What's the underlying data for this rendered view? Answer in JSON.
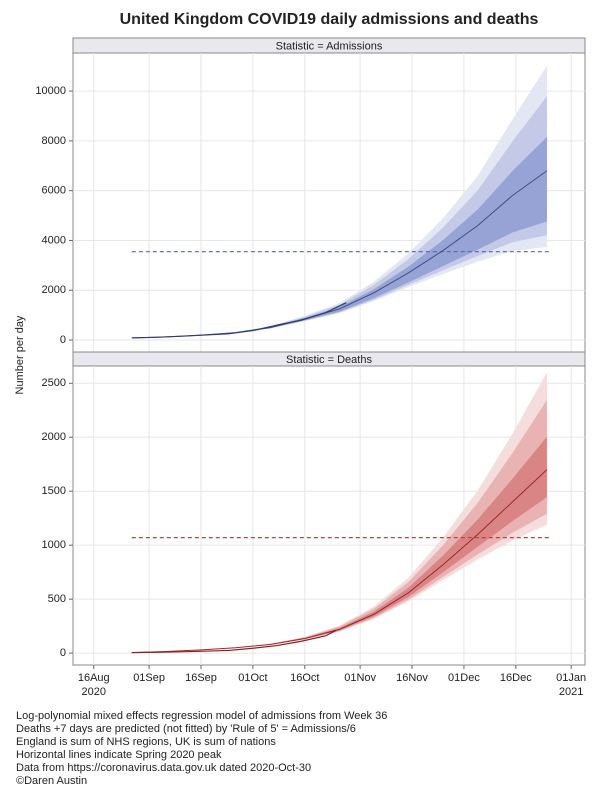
{
  "title": "United Kingdom COVID19 daily admissions and deaths",
  "ylabel": "Number per day",
  "notes": [
    "Log-polynomial mixed effects regression model of admissions from Week 36",
    "Deaths +7 days are predicted (not fitted) by 'Rule of 5' = Admissions/6",
    "England is sum of NHS regions, UK is sum of nations",
    "Horizontal lines indicate Spring 2020 peak",
    "Data from https://coronavirus.data.gov.uk dated 2020-Oct-30",
    "©Daren Austin"
  ],
  "chart_data": [
    {
      "type": "line",
      "panel": "Statistic = Admissions",
      "ylim": [
        -480,
        11530
      ],
      "yticks": [
        0,
        2000,
        4000,
        6000,
        8000,
        10000
      ],
      "x": [
        "2020-08-27",
        "2020-09-06",
        "2020-09-16",
        "2020-09-26",
        "2020-10-06",
        "2020-10-16",
        "2020-10-26",
        "2020-11-05",
        "2020-11-15",
        "2020-11-25",
        "2020-12-05",
        "2020-12-15",
        "2020-12-25"
      ],
      "fit": {
        "color": "#3d4f8a",
        "values": [
          80,
          130,
          200,
          300,
          500,
          850,
          1250,
          1900,
          2700,
          3600,
          4600,
          5800,
          6800
        ]
      },
      "bands": [
        {
          "color": "#e3e6f3",
          "lower": [
            80,
            128,
            193,
            284,
            462,
            762,
            1081,
            1575,
            2129,
            2660,
            3151,
            3582,
            3740
          ],
          "upper": [
            80,
            133,
            210,
            322,
            553,
            971,
            1483,
            2348,
            3487,
            4895,
            6596,
            8857,
            11016
          ]
        },
        {
          "color": "#c3c9e7",
          "lower": [
            80,
            128,
            194,
            286,
            468,
            776,
            1108,
            1626,
            2218,
            2807,
            3376,
            3927,
            4216
          ],
          "upper": [
            80,
            132,
            207,
            316,
            537,
            936,
            1415,
            2218,
            3258,
            4519,
            6017,
            7969,
            9792
          ]
        },
        {
          "color": "#97a3d5",
          "lower": [
            80,
            128,
            195,
            289,
            475,
            791,
            1138,
            1683,
            2319,
            2974,
            3634,
            4321,
            4760
          ],
          "upper": [
            80,
            131,
            203,
            307,
            517,
            889,
            1325,
            2044,
            2954,
            4018,
            5244,
            6786,
            8160
          ]
        }
      ],
      "observed": {
        "color": "#2e3b75",
        "x": [
          "2020-08-27",
          "2020-09-03",
          "2020-09-10",
          "2020-09-17",
          "2020-09-24",
          "2020-10-01",
          "2020-10-08",
          "2020-10-15",
          "2020-10-22",
          "2020-10-28"
        ],
        "values": [
          90,
          110,
          150,
          200,
          250,
          380,
          600,
          800,
          1100,
          1500
        ]
      },
      "reference": {
        "color": "#5a66a8",
        "value": 3550,
        "x": [
          "2020-08-27",
          "2020-12-26"
        ]
      }
    },
    {
      "type": "line",
      "panel": "Statistic = Deaths",
      "ylim": [
        -110,
        2660
      ],
      "yticks": [
        0,
        500,
        1000,
        1500,
        2000,
        2500
      ],
      "xlim": [
        "2020-08-10",
        "2021-01-05"
      ],
      "xticks": [
        {
          "value": "2020-08-16",
          "label": "16Aug",
          "year": "2020"
        },
        {
          "value": "2020-09-01",
          "label": "01Sep"
        },
        {
          "value": "2020-09-16",
          "label": "16Sep"
        },
        {
          "value": "2020-10-01",
          "label": "01Oct"
        },
        {
          "value": "2020-10-16",
          "label": "16Oct"
        },
        {
          "value": "2020-11-01",
          "label": "01Nov"
        },
        {
          "value": "2020-11-16",
          "label": "16Nov"
        },
        {
          "value": "2020-12-01",
          "label": "01Dec"
        },
        {
          "value": "2020-12-16",
          "label": "16Dec"
        },
        {
          "value": "2021-01-01",
          "label": "01Jan",
          "year": "2021"
        }
      ],
      "x": [
        "2020-08-27",
        "2020-09-06",
        "2020-09-16",
        "2020-09-26",
        "2020-10-06",
        "2020-10-16",
        "2020-10-26",
        "2020-11-05",
        "2020-11-15",
        "2020-11-25",
        "2020-12-05",
        "2020-12-15",
        "2020-12-25"
      ],
      "fit": {
        "color": "#a02828",
        "values": [
          5,
          15,
          30,
          50,
          80,
          135,
          220,
          360,
          560,
          820,
          1100,
          1400,
          1700
        ]
      },
      "bands": [
        {
          "color": "#f5dddd",
          "lower": [
            5,
            15,
            29,
            48,
            76,
            126,
            200,
            319,
            481,
            677,
            869,
            1043,
            1190
          ],
          "upper": [
            5,
            15,
            31,
            53,
            87,
            151,
            255,
            433,
            700,
            1072,
            1508,
            2031,
            2601
          ]
        },
        {
          "color": "#eab3b3",
          "lower": [
            5,
            15,
            29,
            49,
            77,
            128,
            204,
            327,
            497,
            706,
            915,
            1114,
            1292
          ],
          "upper": [
            5,
            15,
            31,
            52,
            85,
            147,
            245,
            412,
            660,
            1001,
            1393,
            1852,
            2346
          ]
        },
        {
          "color": "#d98585",
          "lower": [
            5,
            15,
            30,
            49,
            78,
            130,
            210,
            339,
            521,
            749,
            985,
            1222,
            1445
          ],
          "upper": [
            5,
            15,
            30,
            51,
            82,
            141,
            232,
            385,
            607,
            906,
            1239,
            1614,
            2006
          ]
        }
      ],
      "observed": {
        "color": "#8a1f1f",
        "x": [
          "2020-08-27",
          "2020-09-03",
          "2020-09-10",
          "2020-09-17",
          "2020-09-24",
          "2020-10-01",
          "2020-10-08",
          "2020-10-15",
          "2020-10-22",
          "2020-10-25"
        ],
        "values": [
          5,
          8,
          12,
          18,
          25,
          45,
          70,
          110,
          160,
          210
        ]
      },
      "reference": {
        "color": "#c04040",
        "value": 1070,
        "x": [
          "2020-08-27",
          "2020-12-26"
        ]
      }
    }
  ]
}
